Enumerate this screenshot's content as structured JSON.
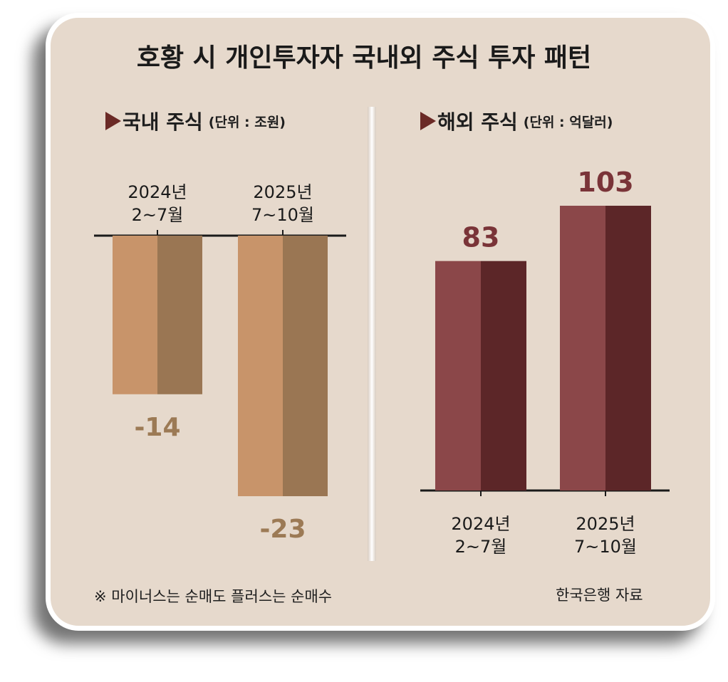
{
  "title": "호황 시 개인투자자 국내외 주식 투자 패턴",
  "charts_meta": [
    {
      "name": "국내 주식",
      "unit": "(단위 : 조원)"
    },
    {
      "name": "해외 주식",
      "unit": "(단위 : 억달러)"
    }
  ],
  "footnote": "※ 마이너스는 순매도 플러스는 순매수",
  "source": "한국은행 자료",
  "colors": {
    "domestic_light": "#c8946a",
    "domestic_dark": "#9a7653",
    "domestic_label": "#9c7a55",
    "overseas_light": "#8b4749",
    "overseas_dark": "#5c2628",
    "overseas_label": "#7a3438"
  },
  "chart_data": [
    {
      "type": "bar",
      "title": "국내 주식",
      "unit": "(단위 : 조원)",
      "categories": [
        [
          "2024년",
          "2~7월"
        ],
        [
          "2025년",
          "7~10월"
        ]
      ],
      "values": [
        -14,
        -23
      ],
      "data_labels": [
        "-14",
        "-23"
      ]
    },
    {
      "type": "bar",
      "title": "해외 주식",
      "unit": "(단위 : 억달러)",
      "categories": [
        [
          "2024년",
          "2~7월"
        ],
        [
          "2025년",
          "7~10월"
        ]
      ],
      "values": [
        83,
        103
      ],
      "data_labels": [
        "83",
        "103"
      ]
    }
  ]
}
